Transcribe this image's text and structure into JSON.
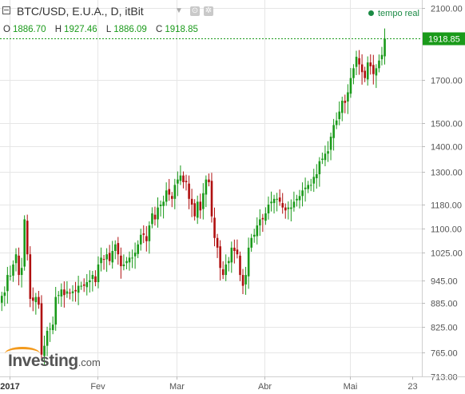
{
  "header": {
    "title": "BTC/USD, E.U.A., D, itBit",
    "ohlc": [
      {
        "key": "O",
        "value": "1886.70"
      },
      {
        "key": "H",
        "value": "1927.46"
      },
      {
        "key": "L",
        "value": "1886.09"
      },
      {
        "key": "C",
        "value": "1918.85"
      }
    ],
    "realtime_label": "tempo real"
  },
  "logo": {
    "brand": "Investing",
    "suffix": ".com"
  },
  "colors": {
    "up": "#1a9a1a",
    "down": "#b01010",
    "grid": "#e6e6e6",
    "last": "#1a9a1a"
  },
  "chart_data": {
    "type": "candlestick",
    "title": "BTC/USD, E.U.A., D, itBit",
    "y_scale": "log",
    "ylim": [
      713,
      2100
    ],
    "y_ticks": [
      {
        "value": 2100,
        "label": "2100.00"
      },
      {
        "value": 1700,
        "label": "1700.00"
      },
      {
        "value": 1500,
        "label": "1500.00"
      },
      {
        "value": 1400,
        "label": "1400.00"
      },
      {
        "value": 1300,
        "label": "1300.00"
      },
      {
        "value": 1180,
        "label": "1180.00"
      },
      {
        "value": 1100,
        "label": "1100.00"
      },
      {
        "value": 1025,
        "label": "1025.00"
      },
      {
        "value": 945,
        "label": "945.00"
      },
      {
        "value": 885,
        "label": "885.00"
      },
      {
        "value": 825,
        "label": "825.00"
      },
      {
        "value": 765,
        "label": "765.00"
      },
      {
        "value": 713,
        "label": "713.00"
      }
    ],
    "x_ticks": [
      {
        "label": "2017",
        "index": 3,
        "bold": true
      },
      {
        "label": "Fev",
        "index": 34
      },
      {
        "label": "Mar",
        "index": 62
      },
      {
        "label": "Abr",
        "index": 93
      },
      {
        "label": "Mai",
        "index": 123
      },
      {
        "label": "23",
        "index": 145
      }
    ],
    "last_price": {
      "value": 1918.85,
      "label": "1918.85"
    },
    "closes": [
      903,
      912,
      960,
      958,
      990,
      1020,
      960,
      980,
      1130,
      1020,
      895,
      890,
      900,
      880,
      760,
      780,
      815,
      820,
      830,
      900,
      905,
      920,
      905,
      915,
      910,
      915,
      915,
      930,
      930,
      930,
      940,
      945,
      960,
      940,
      990,
      1010,
      1005,
      1020,
      1000,
      1030,
      1050,
      1020,
      985,
      990,
      1000,
      1010,
      1010,
      1025,
      1050,
      1080,
      1080,
      1060,
      1110,
      1150,
      1130,
      1170,
      1180,
      1190,
      1230,
      1215,
      1200,
      1250,
      1270,
      1285,
      1260,
      1260,
      1200,
      1180,
      1140,
      1190,
      1160,
      1220,
      1270,
      1260,
      1140,
      1070,
      1040,
      980,
      960,
      990,
      1000,
      1040,
      1030,
      1020,
      960,
      930,
      960,
      1040,
      1070,
      1080,
      1110,
      1130,
      1130,
      1150,
      1180,
      1190,
      1200,
      1200,
      1190,
      1170,
      1160,
      1170,
      1170,
      1190,
      1200,
      1210,
      1230,
      1240,
      1250,
      1250,
      1280,
      1290,
      1340,
      1350,
      1370,
      1380,
      1440,
      1490,
      1510,
      1550,
      1600,
      1590,
      1640,
      1710,
      1760,
      1820,
      1780,
      1740,
      1710,
      1790,
      1770,
      1730,
      1760,
      1800,
      1830,
      1920
    ]
  }
}
